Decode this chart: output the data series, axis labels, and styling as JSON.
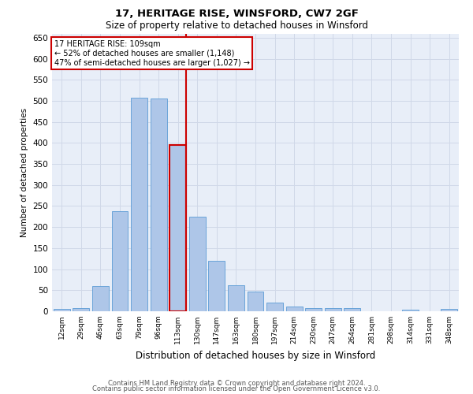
{
  "title1": "17, HERITAGE RISE, WINSFORD, CW7 2GF",
  "title2": "Size of property relative to detached houses in Winsford",
  "xlabel": "Distribution of detached houses by size in Winsford",
  "ylabel": "Number of detached properties",
  "categories": [
    "12sqm",
    "29sqm",
    "46sqm",
    "63sqm",
    "79sqm",
    "96sqm",
    "113sqm",
    "130sqm",
    "147sqm",
    "163sqm",
    "180sqm",
    "197sqm",
    "214sqm",
    "230sqm",
    "247sqm",
    "264sqm",
    "281sqm",
    "298sqm",
    "314sqm",
    "331sqm",
    "348sqm"
  ],
  "values": [
    5,
    8,
    60,
    238,
    507,
    505,
    395,
    225,
    120,
    62,
    47,
    20,
    12,
    8,
    8,
    7,
    0,
    0,
    3,
    0,
    6
  ],
  "bar_color": "#aec6e8",
  "bar_edge_color": "#5b9bd5",
  "highlight_index": 6,
  "highlight_line_color": "#cc0000",
  "ylim": [
    0,
    660
  ],
  "yticks": [
    0,
    50,
    100,
    150,
    200,
    250,
    300,
    350,
    400,
    450,
    500,
    550,
    600,
    650
  ],
  "annotation_title": "17 HERITAGE RISE: 109sqm",
  "annotation_line1": "← 52% of detached houses are smaller (1,148)",
  "annotation_line2": "47% of semi-detached houses are larger (1,027) →",
  "annotation_box_color": "#ffffff",
  "annotation_border_color": "#cc0000",
  "footer1": "Contains HM Land Registry data © Crown copyright and database right 2024.",
  "footer2": "Contains public sector information licensed under the Open Government Licence v3.0.",
  "grid_color": "#d0d8e8",
  "bg_color": "#e8eef8"
}
